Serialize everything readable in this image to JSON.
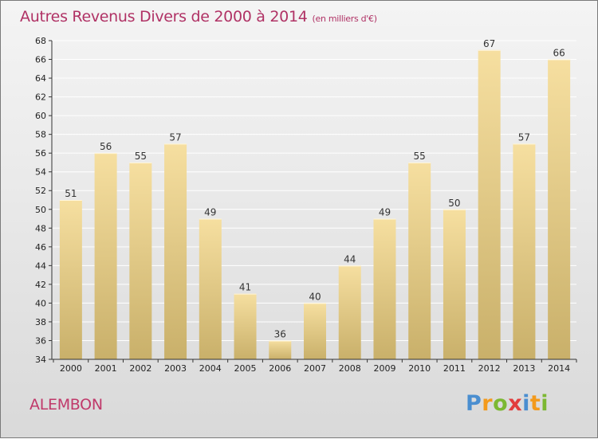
{
  "title": "Autres Revenus Divers de 2000 à 2014",
  "unit": "(en milliers d'€)",
  "commune": "ALEMBON",
  "logo": {
    "letters": [
      "P",
      "r",
      "o",
      "x",
      "i",
      "t",
      "i"
    ],
    "colors": [
      "#4a8ed0",
      "#f39a1c",
      "#7cb832",
      "#e23c3c",
      "#4a8ed0",
      "#f39a1c",
      "#7cb832"
    ]
  },
  "colors": {
    "bar_top": "#f6dfa0",
    "bar_bottom": "#c9b06a",
    "title": "#b03265"
  },
  "chart_data": {
    "type": "bar",
    "categories": [
      "2000",
      "2001",
      "2002",
      "2003",
      "2004",
      "2005",
      "2006",
      "2007",
      "2008",
      "2009",
      "2010",
      "2011",
      "2012",
      "2013",
      "2014"
    ],
    "values": [
      51,
      56,
      55,
      57,
      49,
      41,
      36,
      40,
      44,
      49,
      55,
      50,
      67,
      57,
      66
    ],
    "ylim": [
      34,
      68
    ],
    "yticks": [
      34,
      36,
      38,
      40,
      42,
      44,
      46,
      48,
      50,
      52,
      54,
      56,
      58,
      60,
      62,
      64,
      66,
      68
    ],
    "grid": true,
    "legend": "none"
  }
}
